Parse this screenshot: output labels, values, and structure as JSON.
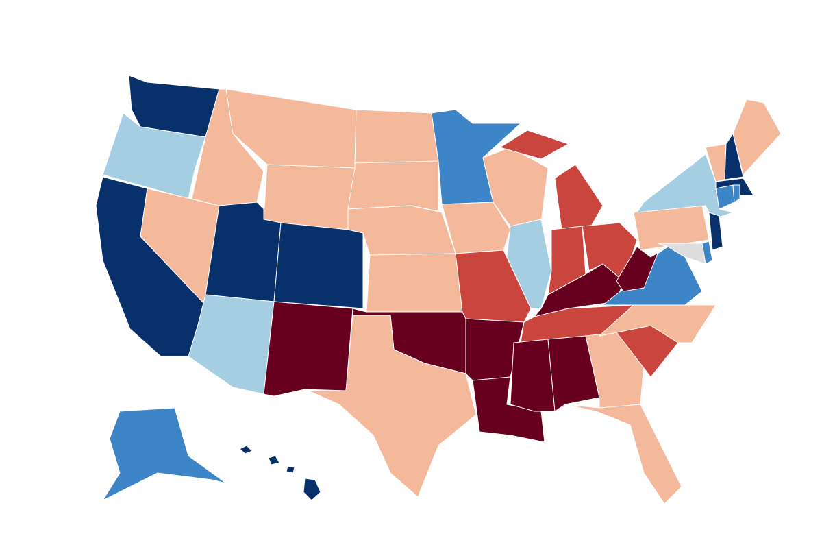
{
  "map": {
    "regions": [
      {
        "color": "#08306b"
      },
      {
        "color": "#a6cee3"
      },
      {
        "color": "#08306b"
      },
      {
        "color": "#f4b89a"
      },
      {
        "color": "#f4b89a"
      },
      {
        "color": "#f4b89a"
      },
      {
        "color": "#f4b89a"
      },
      {
        "color": "#08306b"
      },
      {
        "color": "#08306b"
      },
      {
        "color": "#a6cee3"
      },
      {
        "color": "#67001f"
      },
      {
        "color": "#f4b89a"
      },
      {
        "color": "#f4b89a"
      },
      {
        "color": "#f4b89a"
      },
      {
        "color": "#f4b89a"
      },
      {
        "color": "#67001f"
      },
      {
        "color": "#f4b89a"
      },
      {
        "color": "#3d85c6"
      },
      {
        "color": "#f4b89a"
      },
      {
        "color": "#c9453e"
      },
      {
        "color": "#67001f"
      },
      {
        "color": "#67001f"
      },
      {
        "color": "#f4b89a"
      },
      {
        "color": "#a6cee3"
      },
      {
        "color": "#c9453e"
      },
      {
        "color": "#c9453e"
      },
      {
        "color": "#c9453e"
      },
      {
        "color": "#67001f"
      },
      {
        "color": "#c9453e"
      },
      {
        "color": "#67001f"
      },
      {
        "color": "#67001f"
      },
      {
        "color": "#f4b89a"
      },
      {
        "color": "#f4b89a"
      },
      {
        "color": "#c9453e"
      },
      {
        "color": "#f4b89a"
      },
      {
        "color": "#3d85c6"
      },
      {
        "color": "#67001f"
      },
      {
        "color": "#f4b89a"
      },
      {
        "color": "#a6cee3"
      },
      {
        "color": "#dddddd"
      },
      {
        "color": "#3d85c6"
      },
      {
        "color": "#08306b"
      },
      {
        "color": "#3d85c6"
      },
      {
        "color": "#3d85c6"
      },
      {
        "color": "#08306b"
      },
      {
        "color": "#f4b89a"
      },
      {
        "color": "#08306b"
      },
      {
        "color": "#f4b89a"
      },
      {
        "color": "#3d85c6"
      },
      {
        "color": "#08306b"
      }
    ]
  }
}
